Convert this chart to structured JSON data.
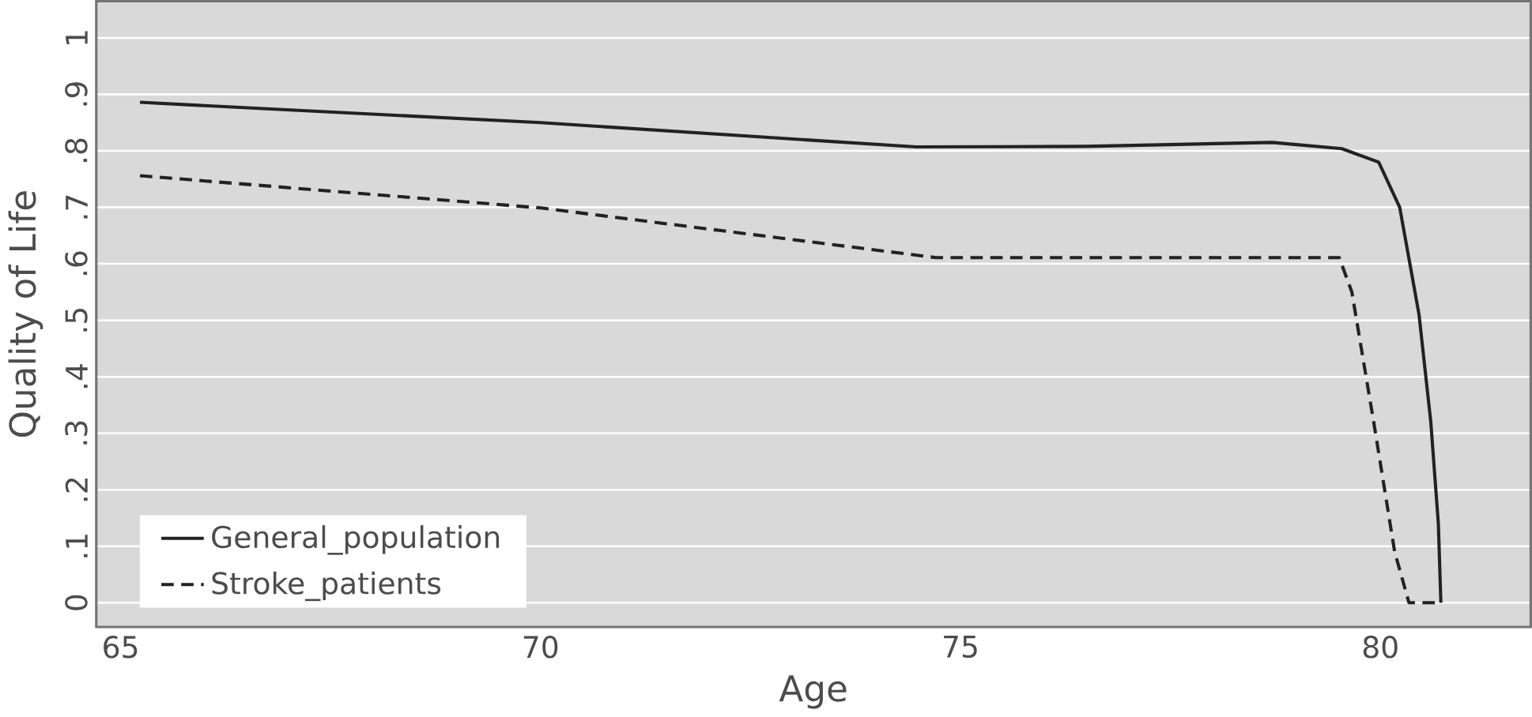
{
  "chart_data": {
    "type": "line",
    "xlabel": "Age",
    "ylabel": "Quality of Life",
    "xlim": [
      64.71,
      81.79
    ],
    "ylim": [
      -0.043,
      1.065
    ],
    "xticks": [
      65,
      70,
      75,
      80
    ],
    "yticks": [
      0,
      {
        "value": 0.1,
        "label": ".1"
      },
      {
        "value": 0.2,
        "label": ".2"
      },
      {
        "value": 0.3,
        "label": ".3"
      },
      {
        "value": 0.4,
        "label": ".4"
      },
      {
        "value": 0.5,
        "label": ".5"
      },
      {
        "value": 0.6,
        "label": ".6"
      },
      {
        "value": 0.7,
        "label": ".7"
      },
      {
        "value": 0.8,
        "label": ".8"
      },
      {
        "value": 0.9,
        "label": ".9"
      },
      1
    ],
    "grid": "y",
    "legend": "bottom left",
    "series": [
      {
        "name": "General_population",
        "color": "#222222",
        "line_style": "solid",
        "x": [
          65.23,
          70,
          74.47,
          76.5,
          78.71,
          79.54,
          79.98,
          80.23,
          80.46,
          80.6,
          80.69,
          80.72
        ],
        "values": [
          0.886,
          0.85,
          0.807,
          0.808,
          0.815,
          0.804,
          0.78,
          0.7,
          0.51,
          0.32,
          0.14,
          0
        ]
      },
      {
        "name": "Stroke_patients",
        "color": "#222222",
        "line_style": "dashed",
        "x": [
          65.23,
          70,
          74.71,
          79.51,
          79.66,
          79.92,
          80.17,
          80.34,
          80.7
        ],
        "values": [
          0.756,
          0.699,
          0.611,
          0.611,
          0.55,
          0.32,
          0.09,
          0,
          0
        ]
      }
    ]
  }
}
